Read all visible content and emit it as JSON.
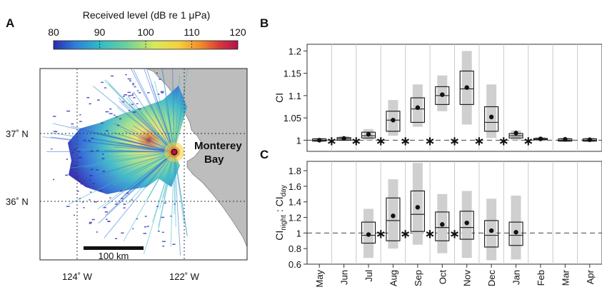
{
  "panel_a": {
    "letter": "A",
    "colorbar": {
      "title": "Received level (dB re 1 μPa)",
      "ticks": [
        80,
        90,
        100,
        110,
        120
      ],
      "min": 80,
      "max": 120,
      "colors": [
        "#2d2bb0",
        "#2f7fd8",
        "#32b9c8",
        "#6fd19b",
        "#d8e85c",
        "#f5d040",
        "#f08a2c",
        "#d63a3a",
        "#b3124e"
      ]
    },
    "map": {
      "lat_labels": [
        "37˚ N",
        "36˚ N"
      ],
      "lon_labels": [
        "124˚ W",
        "122˚ W"
      ],
      "place_label_1": "Monterey",
      "place_label_2": "Bay",
      "scale_label": "100 km",
      "land_color": "#bdbdbd"
    }
  },
  "chart_data": [
    {
      "panel": "B",
      "type": "box",
      "ylabel": "CI",
      "categories": [
        "May",
        "Jun",
        "Jul",
        "Aug",
        "Sep",
        "Oct",
        "Nov",
        "Dec",
        "Jan",
        "Feb",
        "Mar",
        "Apr"
      ],
      "ylim": [
        0.975,
        1.215
      ],
      "yticks": [
        "1",
        "1.05",
        "1.1",
        "1.15",
        "1.2"
      ],
      "yticks_values": [
        1,
        1.05,
        1.1,
        1.15,
        1.2
      ],
      "reference_line": 1,
      "box_q1": [
        0.998,
        1.0,
        1.005,
        1.02,
        1.04,
        1.08,
        1.08,
        1.02,
        1.005,
        1.001,
        0.998,
        0.998
      ],
      "box_median": [
        1.0,
        1.003,
        1.01,
        1.045,
        1.07,
        1.1,
        1.115,
        1.04,
        1.01,
        1.002,
        1.0,
        1.0
      ],
      "box_q3": [
        1.003,
        1.006,
        1.018,
        1.065,
        1.095,
        1.12,
        1.155,
        1.075,
        1.015,
        1.004,
        1.003,
        1.003
      ],
      "range_low": [
        0.996,
        0.998,
        1.0,
        1.01,
        1.03,
        1.065,
        1.035,
        1.005,
        1.0,
        0.998,
        0.996,
        0.996
      ],
      "range_high": [
        1.005,
        1.009,
        1.025,
        1.09,
        1.125,
        1.145,
        1.2,
        1.125,
        1.022,
        1.007,
        1.006,
        1.006
      ],
      "mean": [
        1.0,
        1.004,
        1.013,
        1.045,
        1.073,
        1.102,
        1.118,
        1.052,
        1.016,
        1.003,
        1.002,
        1.001
      ],
      "star_marker": "∗",
      "star_positions": [
        0.5,
        1.5,
        2.5,
        3.5,
        4.5,
        5.5,
        6.5,
        7.5,
        8.5
      ]
    },
    {
      "panel": "C",
      "type": "box",
      "ylabel_main": "CI",
      "ylabel_sub1": "night",
      "ylabel_mid": " : CI",
      "ylabel_sub2": "day",
      "categories": [
        "May",
        "Jun",
        "Jul",
        "Aug",
        "Sep",
        "Oct",
        "Nov",
        "Dec",
        "Jan",
        "Feb",
        "Mar",
        "Apr"
      ],
      "ylim": [
        0.6,
        1.92
      ],
      "yticks": [
        "0.6",
        "0.8",
        "1",
        "1.2",
        "1.4",
        "1.6",
        "1.8"
      ],
      "yticks_values": [
        0.6,
        0.8,
        1.0,
        1.2,
        1.4,
        1.6,
        1.8
      ],
      "reference_line": 1,
      "box_q1": [
        null,
        null,
        0.87,
        0.9,
        1.02,
        0.9,
        0.92,
        0.82,
        0.84,
        null,
        null,
        null
      ],
      "box_median": [
        null,
        null,
        0.97,
        1.16,
        1.24,
        1.07,
        1.07,
        0.97,
        0.97,
        null,
        null,
        null
      ],
      "box_q3": [
        null,
        null,
        1.14,
        1.45,
        1.54,
        1.27,
        1.28,
        1.16,
        1.14,
        null,
        null,
        null
      ],
      "range_low": [
        null,
        null,
        0.68,
        0.8,
        0.85,
        0.74,
        0.68,
        0.65,
        0.66,
        null,
        null,
        null
      ],
      "range_high": [
        null,
        null,
        1.31,
        1.69,
        1.9,
        1.5,
        1.54,
        1.44,
        1.48,
        null,
        null,
        null
      ],
      "mean": [
        null,
        null,
        0.98,
        1.22,
        1.33,
        1.11,
        1.13,
        1.03,
        1.01,
        null,
        null,
        null
      ],
      "star_marker": "∗",
      "star_positions": [
        2.5,
        3.5,
        4.5,
        5.5
      ]
    }
  ]
}
